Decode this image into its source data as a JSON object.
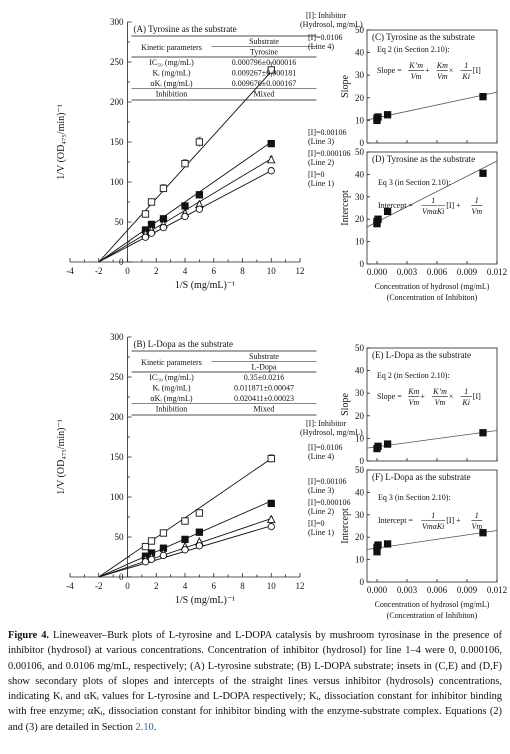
{
  "chart_data": [
    {
      "id": "A",
      "type": "scatter",
      "title": "(A) Tyrosine as the substrate",
      "xlabel": "1/S (mg/mL)⁻¹",
      "ylabel": "1/V (OD₄₇₅/min)⁻¹",
      "xlim": [
        -4,
        12
      ],
      "ylim": [
        0,
        300
      ],
      "xticks": [
        -4,
        -2,
        0,
        2,
        4,
        6,
        8,
        10,
        12
      ],
      "yticks": [
        0,
        50,
        100,
        150,
        200,
        250,
        300
      ],
      "x": [
        1.25,
        1.67,
        2.5,
        4,
        5,
        10
      ],
      "legend_header": [
        "[I]: Inhibitor",
        "(Hydrosol, mg/mL)"
      ],
      "series": [
        {
          "name": "[I]=0.0106",
          "line_label": "(Line 4)",
          "marker": "open-square",
          "values": [
            60,
            75,
            92,
            123,
            150,
            240
          ],
          "errors": [
            3,
            4,
            5,
            5,
            6,
            9
          ],
          "fit": [
            -2,
            0,
            10,
            238
          ]
        },
        {
          "name": "[I]=0.00106",
          "line_label": "(Line 3)",
          "marker": "filled-square",
          "values": [
            40,
            47,
            54,
            70,
            84,
            148
          ],
          "errors": [
            2,
            2,
            3,
            3,
            3,
            4
          ],
          "fit": [
            -2,
            0,
            10,
            150
          ]
        },
        {
          "name": "[I]=0.000106",
          "line_label": "(Line 2)",
          "marker": "open-triangle",
          "values": [
            35,
            40,
            47,
            61,
            72,
            128
          ],
          "errors": [
            2,
            2,
            2,
            3,
            3,
            4
          ],
          "fit": [
            -2,
            0,
            10,
            129
          ]
        },
        {
          "name": "[I]=0",
          "line_label": "(Line 1)",
          "marker": "open-circle",
          "values": [
            31,
            36,
            43,
            57,
            66,
            114
          ],
          "errors": [
            2,
            2,
            2,
            2,
            3,
            4
          ],
          "fit": [
            -2,
            0,
            10,
            114
          ]
        }
      ],
      "table": {
        "head_top": "Substrate",
        "head_left": "Kinetic parameters",
        "head_right": "Tyrosine",
        "rows": [
          {
            "param": "IC₅₀ (mg/mL)",
            "value": "0.000796±0.000016"
          },
          {
            "param": "Kᵢ (mg/mL)",
            "value": "0.009267±0.000181"
          },
          {
            "param": "αKᵢ (mg/mL)",
            "value": "0.009676±0.000167"
          },
          {
            "param": "Inhibition",
            "value": "Mixed"
          }
        ]
      }
    },
    {
      "id": "C",
      "type": "scatter",
      "title": "(C) Tyrosine as the substrate",
      "ylabel": "Slope",
      "xlim": [
        -0.001,
        0.012
      ],
      "ylim": [
        0,
        50
      ],
      "yticks": [
        0,
        10,
        20,
        30,
        40,
        50
      ],
      "x": [
        0,
        0,
        0.000106,
        0.00106,
        0.0106
      ],
      "values": [
        10,
        11,
        11.5,
        12.5,
        20.5
      ],
      "fit": [
        -0.001,
        10.2,
        0.012,
        22.5
      ],
      "equation_title": "Eq 2 (in Section 2.10):",
      "equation": "Slope = K’m/Vm + Km/Vm × 1/Ki [I]"
    },
    {
      "id": "D",
      "type": "scatter",
      "title": "(D) Tyrosine as the substrate",
      "ylabel": "Intercept",
      "xlabel": "Concentration of hydrosol (mg/mL)",
      "xlabel2": "(Concentration of Inhibiton)",
      "xlim": [
        -0.001,
        0.012
      ],
      "ylim": [
        0,
        50
      ],
      "xticks": [
        0,
        0.003,
        0.006,
        0.009,
        0.012
      ],
      "xticklabels": [
        "0.000",
        "0.003",
        "0.006",
        "0.009",
        "0.012"
      ],
      "yticks": [
        0,
        10,
        20,
        30,
        40,
        50
      ],
      "x": [
        0,
        0,
        0.000106,
        0.00106,
        0.0106
      ],
      "values": [
        18,
        19,
        20,
        23.5,
        40.5
      ],
      "fit": [
        -0.001,
        16.5,
        0.012,
        46
      ],
      "equation_title": "Eq 3 (in Section 2.10):",
      "equation": "Intercept = 1/(VmαKi) [I] + 1/Vm"
    },
    {
      "id": "B",
      "type": "scatter",
      "title": "(B) L-Dopa as the substrate",
      "xlabel": "1/S (mg/mL)⁻¹",
      "ylabel": "1/V (OD₄₇₅/min)⁻¹",
      "xlim": [
        -4,
        12
      ],
      "ylim": [
        0,
        300
      ],
      "xticks": [
        -4,
        -2,
        0,
        2,
        4,
        6,
        8,
        10,
        12
      ],
      "yticks": [
        0,
        50,
        100,
        150,
        200,
        250,
        300
      ],
      "x": [
        1.25,
        1.67,
        2.5,
        4,
        5,
        10
      ],
      "legend_header": [
        "[I]: Inhibitor",
        "(Hydrosol, mg/mL)"
      ],
      "series": [
        {
          "name": "[I]=0.0106",
          "line_label": "(Line 4)",
          "marker": "open-square",
          "values": [
            38,
            45,
            55,
            70,
            80,
            148
          ],
          "errors": [
            2,
            2,
            3,
            3,
            3,
            5
          ],
          "fit": [
            -2,
            0,
            10,
            148
          ]
        },
        {
          "name": "[I]=0.00106",
          "line_label": "(Line 3)",
          "marker": "filled-square",
          "values": [
            26,
            30,
            36,
            47,
            56,
            92
          ],
          "errors": [
            2,
            2,
            2,
            2,
            3,
            4
          ],
          "fit": [
            -2,
            0,
            10,
            95
          ]
        },
        {
          "name": "[I]=0.000106",
          "line_label": "(Line 2)",
          "marker": "open-triangle",
          "values": [
            22,
            25,
            30,
            38,
            44,
            72
          ],
          "errors": [
            2,
            2,
            2,
            2,
            2,
            3
          ],
          "fit": [
            -2,
            0,
            10,
            73
          ]
        },
        {
          "name": "[I]=0",
          "line_label": "(Line 1)",
          "marker": "open-circle",
          "values": [
            19,
            22,
            27,
            34,
            39,
            63
          ],
          "errors": [
            2,
            2,
            2,
            2,
            2,
            3
          ],
          "fit": [
            -2,
            0,
            10,
            64
          ]
        }
      ],
      "table": {
        "head_top": "Substrate",
        "head_left": "Kinetic parameters",
        "head_right": "L-Dopa",
        "rows": [
          {
            "param": "IC₅₀ (mg/mL)",
            "value": "0.35±0.0216"
          },
          {
            "param": "Kᵢ (mg/mL)",
            "value": "0.011871±0.00047"
          },
          {
            "param": "αKᵢ (mg/mL)",
            "value": "0.020411±0.00023"
          },
          {
            "param": "Inhibition",
            "value": "Mixed"
          }
        ]
      }
    },
    {
      "id": "E",
      "type": "scatter",
      "title": "(E) L-Dopa as the substrate",
      "ylabel": "Slope",
      "xlim": [
        -0.001,
        0.012
      ],
      "ylim": [
        0,
        50
      ],
      "yticks": [
        0,
        10,
        20,
        30,
        40,
        50
      ],
      "x": [
        0,
        0.000106,
        0.00106,
        0.0106
      ],
      "values": [
        5.5,
        6.5,
        7.5,
        12.5
      ],
      "fit": [
        -0.001,
        5.7,
        0.012,
        13.5
      ],
      "equation_title": "Eq 2 (in Section 2.10):",
      "equation": "Slope = Km/Vm + K’m/Vm × 1/Ki [I]"
    },
    {
      "id": "F",
      "type": "scatter",
      "title": "(F) L-Dopa as the substrate",
      "ylabel": "Intercept",
      "xlabel": "Concentration of hydrosol (mg/mL)",
      "xlabel2": "(Concentration of Inhibiton)",
      "xlim": [
        -0.001,
        0.012
      ],
      "ylim": [
        0,
        50
      ],
      "xticks": [
        0,
        0.003,
        0.006,
        0.009,
        0.012
      ],
      "xticklabels": [
        "0.000",
        "0.003",
        "0.006",
        "0.009",
        "0.012"
      ],
      "yticks": [
        0,
        10,
        20,
        30,
        40,
        50
      ],
      "x": [
        0,
        0,
        0.000106,
        0.00106,
        0.0106
      ],
      "values": [
        13.5,
        15.5,
        16.5,
        17,
        22
      ],
      "fit": [
        -0.001,
        14.5,
        0.012,
        23
      ],
      "equation_title": "Eq 3 (in Section 2.10):",
      "equation": "Intercept = 1/(VmαKi) [I] + 1/Vm"
    }
  ],
  "caption": {
    "lead": "Figure 4.",
    "text1": " Lineweaver–Burk plots of L-tyrosine and L-DOPA catalysis by mushroom tyrosinase in the presence of inhibitor (hydrosol) at various concentrations. Concentration of inhibitor (hydrosol) for line 1–4 were 0, 0.000106, 0.00106, and 0.0106 mg/mL, respectively; (A) L-tyrosine substrate; (B) L-DOPA substrate; insets in (C,E) and (D,F) show secondary plots of slopes and intercepts of the straight lines versus inhibitor (hydrosols) concentrations, indicating Kᵢ and αKᵢ values for L-tyrosine and L-DOPA respectively; Kᵢ, dissociation constant for inhibitor binding with free enzyme; αKᵢ, dissociation constant for inhibitor binding with the enzyme-substrate complex. Equations (2) and (3) are detailed in Section ",
    "ref": "2.10",
    "text2": "."
  }
}
